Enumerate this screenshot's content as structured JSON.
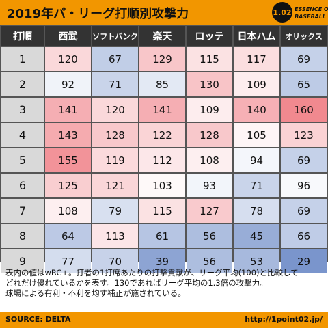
{
  "title": "2019年パ・リーグ打順別攻撃力",
  "logo": {
    "mark": "1.02",
    "line1": "ESSENCE OF",
    "line2": "BASEBALL"
  },
  "note": [
    "表内の値はwRC+。打者の1打席あたりの打撃貢献が、リーグ平均(100)と比較して",
    "どれだけ優れているかを表す。130であればリーグ平均の1.3倍の攻撃力。",
    "球場による有利・不利を均す補正が施されている。"
  ],
  "footer": {
    "source": "SOURCE: DELTA",
    "url": "http://1point02.jp/"
  },
  "colors": {
    "accent": "#f29600",
    "high": "#e8404a",
    "low": "#3c64b4",
    "neutral": "#ffffff"
  },
  "chart_data": {
    "type": "table",
    "row_header": "打順",
    "columns": [
      "西武",
      "ソフトバンク",
      "楽天",
      "ロッテ",
      "日本ハム",
      "オリックス"
    ],
    "rows": [
      "1",
      "2",
      "3",
      "4",
      "5",
      "6",
      "7",
      "8",
      "9"
    ],
    "values": [
      [
        120,
        67,
        129,
        115,
        117,
        69
      ],
      [
        92,
        71,
        85,
        130,
        109,
        65
      ],
      [
        141,
        120,
        141,
        109,
        140,
        160
      ],
      [
        143,
        128,
        122,
        128,
        105,
        123
      ],
      [
        155,
        119,
        112,
        108,
        94,
        69
      ],
      [
        125,
        121,
        103,
        93,
        71,
        96
      ],
      [
        108,
        79,
        115,
        127,
        78,
        69
      ],
      [
        64,
        113,
        61,
        56,
        45,
        66
      ],
      [
        77,
        70,
        39,
        56,
        53,
        29
      ]
    ],
    "scale": {
      "center": 100
    }
  }
}
